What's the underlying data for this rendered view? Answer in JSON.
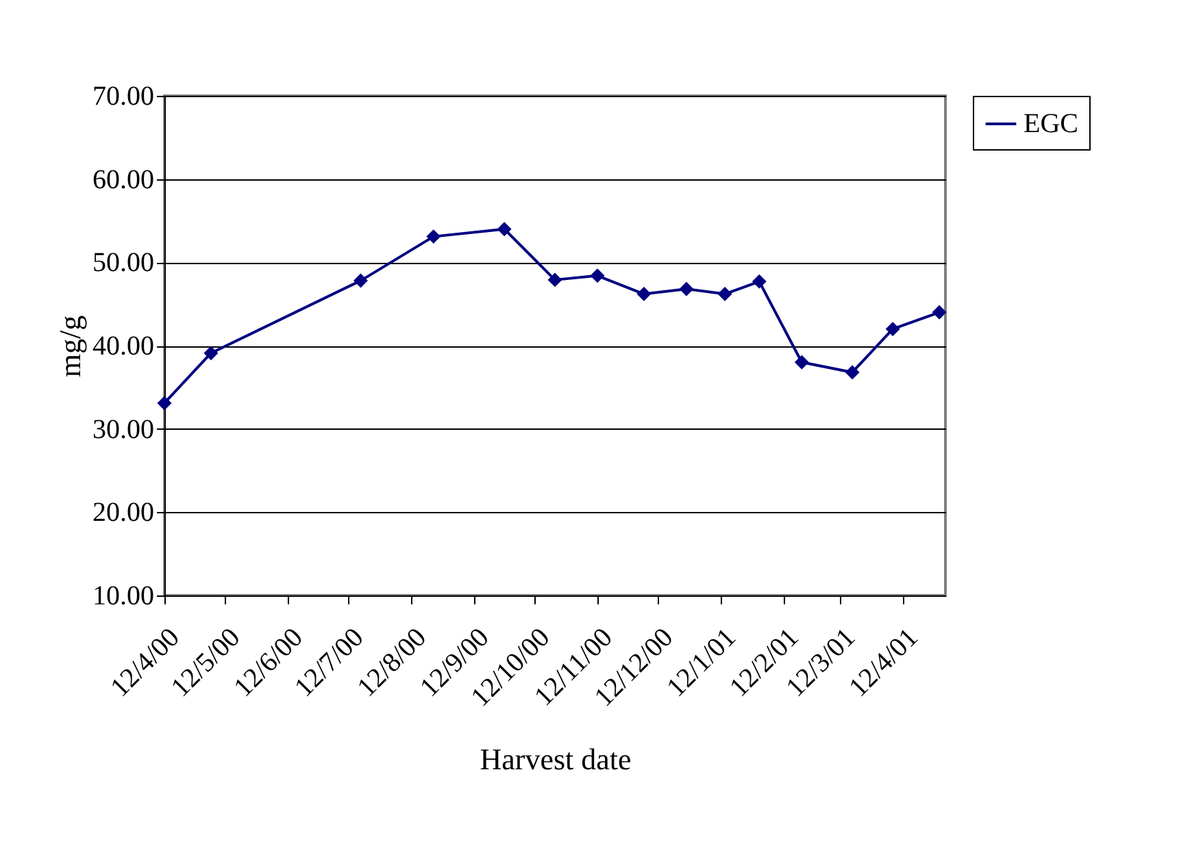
{
  "chart_data": {
    "type": "line",
    "xlabel": "Harvest date",
    "ylabel": "mg/g",
    "x": [
      "2000-04-12",
      "2000-05-05",
      "2000-07-18",
      "2000-08-23",
      "2000-09-27",
      "2000-10-22",
      "2000-11-12",
      "2000-12-05",
      "2000-12-26",
      "2001-01-14",
      "2001-01-31",
      "2001-02-21",
      "2001-03-18",
      "2001-04-07",
      "2001-04-30"
    ],
    "series": [
      {
        "name": "EGC",
        "color": "#000080",
        "values": [
          33.1,
          39.1,
          47.8,
          53.1,
          54.0,
          47.9,
          48.4,
          46.2,
          46.8,
          46.2,
          47.7,
          38.0,
          36.8,
          42.0,
          44.0
        ]
      }
    ],
    "xlim": [
      "2000-04-12",
      "2001-05-03"
    ],
    "xticks": [
      {
        "value": "2000-04-12",
        "label": "12/4/00"
      },
      {
        "value": "2000-05-12",
        "label": "12/5/00"
      },
      {
        "value": "2000-06-12",
        "label": "12/6/00"
      },
      {
        "value": "2000-07-12",
        "label": "12/7/00"
      },
      {
        "value": "2000-08-12",
        "label": "12/8/00"
      },
      {
        "value": "2000-09-12",
        "label": "12/9/00"
      },
      {
        "value": "2000-10-12",
        "label": "12/10/00"
      },
      {
        "value": "2000-11-12",
        "label": "12/11/00"
      },
      {
        "value": "2000-12-12",
        "label": "12/12/00"
      },
      {
        "value": "2001-01-12",
        "label": "12/1/01"
      },
      {
        "value": "2001-02-12",
        "label": "12/2/01"
      },
      {
        "value": "2001-03-12",
        "label": "12/3/01"
      },
      {
        "value": "2001-04-12",
        "label": "12/4/01"
      }
    ],
    "ylim": [
      10,
      70
    ],
    "yticks": [
      {
        "value": 10,
        "label": "10.00"
      },
      {
        "value": 20,
        "label": "20.00"
      },
      {
        "value": 30,
        "label": "30.00"
      },
      {
        "value": 40,
        "label": "40.00"
      },
      {
        "value": 50,
        "label": "50.00"
      },
      {
        "value": 60,
        "label": "60.00"
      },
      {
        "value": 70,
        "label": "70.00"
      }
    ],
    "grid": "y",
    "legend": "right",
    "marker": "diamond",
    "line_style": "solid"
  }
}
